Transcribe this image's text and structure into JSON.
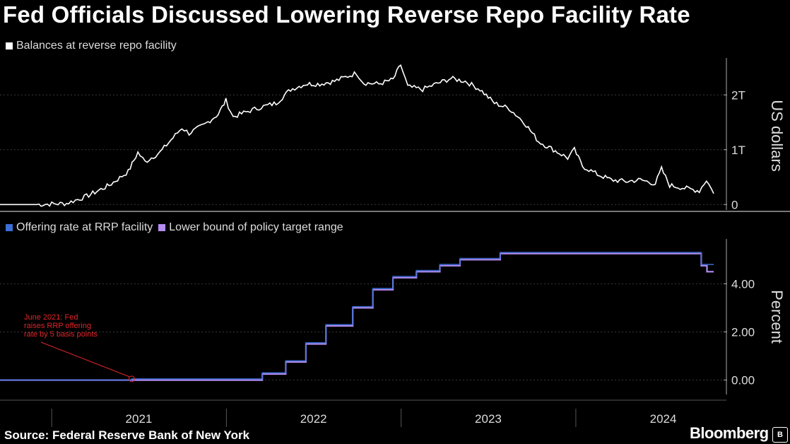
{
  "title": "Fed Officials Discussed Lowering Reverse Repo Facility Rate",
  "source": "Source: Federal Reserve Bank of New York",
  "brand": "Bloomberg",
  "brand_box": "B",
  "colors": {
    "background": "#000000",
    "balances": "#ffffff",
    "offering_rate": "#3b6fd6",
    "lower_bound": "#b48cf0",
    "annotation": "#e0252a"
  },
  "chart_data": [
    {
      "type": "line",
      "legend": [
        "Balances at reverse repo facility"
      ],
      "ylabel": "US dollars",
      "ytick_labels": [
        "0",
        "1T",
        "2T"
      ],
      "yticks": [
        0,
        1,
        2
      ],
      "ylim": [
        -0.1,
        2.7
      ],
      "xlim": [
        "2020-09-15",
        "2024-10-15"
      ],
      "series": [
        {
          "name": "Balances at reverse repo facility",
          "unit": "trillions USD",
          "points": [
            [
              "2020-09-15",
              0.0
            ],
            [
              "2020-12-01",
              0.0
            ],
            [
              "2021-02-01",
              0.02
            ],
            [
              "2021-03-15",
              0.15
            ],
            [
              "2021-05-01",
              0.35
            ],
            [
              "2021-06-10",
              0.6
            ],
            [
              "2021-06-30",
              0.95
            ],
            [
              "2021-07-15",
              0.78
            ],
            [
              "2021-08-15",
              0.95
            ],
            [
              "2021-09-30",
              1.4
            ],
            [
              "2021-10-15",
              1.3
            ],
            [
              "2021-11-15",
              1.45
            ],
            [
              "2021-12-15",
              1.65
            ],
            [
              "2021-12-31",
              1.9
            ],
            [
              "2022-01-15",
              1.6
            ],
            [
              "2022-02-15",
              1.7
            ],
            [
              "2022-03-15",
              1.78
            ],
            [
              "2022-04-15",
              1.85
            ],
            [
              "2022-05-15",
              2.1
            ],
            [
              "2022-06-15",
              2.2
            ],
            [
              "2022-07-15",
              2.2
            ],
            [
              "2022-08-15",
              2.25
            ],
            [
              "2022-09-30",
              2.4
            ],
            [
              "2022-10-15",
              2.22
            ],
            [
              "2022-11-15",
              2.2
            ],
            [
              "2022-12-15",
              2.28
            ],
            [
              "2022-12-31",
              2.55
            ],
            [
              "2023-01-15",
              2.15
            ],
            [
              "2023-02-15",
              2.1
            ],
            [
              "2023-03-15",
              2.2
            ],
            [
              "2023-04-15",
              2.3
            ],
            [
              "2023-05-15",
              2.25
            ],
            [
              "2023-06-15",
              2.1
            ],
            [
              "2023-07-15",
              1.85
            ],
            [
              "2023-08-15",
              1.75
            ],
            [
              "2023-09-15",
              1.5
            ],
            [
              "2023-10-15",
              1.15
            ],
            [
              "2023-11-15",
              1.0
            ],
            [
              "2023-12-15",
              0.85
            ],
            [
              "2023-12-29",
              1.0
            ],
            [
              "2024-01-15",
              0.7
            ],
            [
              "2024-02-15",
              0.55
            ],
            [
              "2024-03-15",
              0.45
            ],
            [
              "2024-04-15",
              0.42
            ],
            [
              "2024-05-15",
              0.45
            ],
            [
              "2024-06-15",
              0.38
            ],
            [
              "2024-06-28",
              0.65
            ],
            [
              "2024-07-15",
              0.35
            ],
            [
              "2024-08-15",
              0.3
            ],
            [
              "2024-09-15",
              0.25
            ],
            [
              "2024-09-30",
              0.45
            ],
            [
              "2024-10-15",
              0.2
            ]
          ]
        }
      ]
    },
    {
      "type": "line",
      "legend": [
        "Offering rate at RRP facility",
        "Lower bound of policy target range"
      ],
      "ylabel": "Percent",
      "ytick_labels": [
        "0.00",
        "2.00",
        "4.00"
      ],
      "yticks": [
        0,
        2,
        4
      ],
      "ylim": [
        -0.6,
        5.8
      ],
      "xlim": [
        "2020-09-15",
        "2024-10-15"
      ],
      "xtick_labels": [
        "2021",
        "2022",
        "2023",
        "2024"
      ],
      "series": [
        {
          "name": "Offering rate at RRP facility",
          "unit": "percent",
          "steps": [
            [
              "2020-09-15",
              0.0
            ],
            [
              "2021-06-17",
              0.05
            ],
            [
              "2022-03-17",
              0.3
            ],
            [
              "2022-05-05",
              0.8
            ],
            [
              "2022-06-16",
              1.55
            ],
            [
              "2022-07-28",
              2.3
            ],
            [
              "2022-09-22",
              3.05
            ],
            [
              "2022-11-03",
              3.8
            ],
            [
              "2022-12-15",
              4.3
            ],
            [
              "2023-02-02",
              4.55
            ],
            [
              "2023-03-23",
              4.8
            ],
            [
              "2023-05-04",
              5.05
            ],
            [
              "2023-07-27",
              5.3
            ],
            [
              "2024-09-19",
              4.8
            ],
            [
              "2024-10-01",
              4.8
            ],
            [
              "2024-10-15",
              4.8
            ]
          ]
        },
        {
          "name": "Lower bound of policy target range",
          "unit": "percent",
          "steps": [
            [
              "2020-09-15",
              0.0
            ],
            [
              "2022-03-17",
              0.25
            ],
            [
              "2022-05-05",
              0.75
            ],
            [
              "2022-06-16",
              1.5
            ],
            [
              "2022-07-28",
              2.25
            ],
            [
              "2022-09-22",
              3.0
            ],
            [
              "2022-11-03",
              3.75
            ],
            [
              "2022-12-15",
              4.25
            ],
            [
              "2023-02-02",
              4.5
            ],
            [
              "2023-03-23",
              4.75
            ],
            [
              "2023-05-04",
              5.0
            ],
            [
              "2023-07-27",
              5.25
            ],
            [
              "2024-09-19",
              4.75
            ],
            [
              "2024-10-01",
              4.5
            ],
            [
              "2024-10-15",
              4.5
            ]
          ]
        }
      ],
      "annotation": {
        "lines": [
          "June 2021: Fed",
          "raises RRP offering",
          "rate by 5 basis points"
        ],
        "x": "2021-06-17",
        "y": 0.05
      }
    }
  ]
}
